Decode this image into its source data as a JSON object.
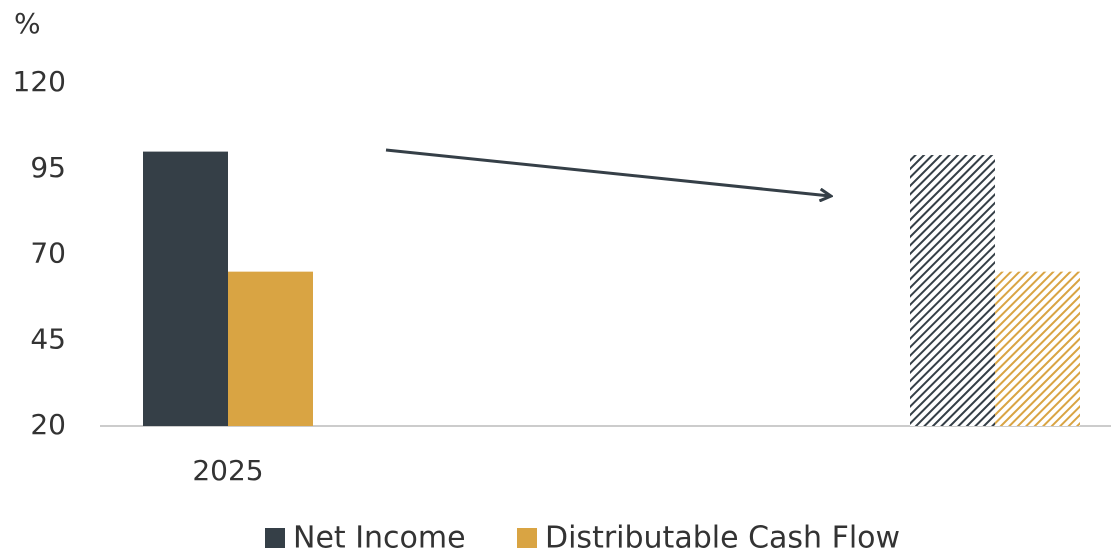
{
  "chart_data": {
    "type": "bar",
    "y_label": "%",
    "categories": [
      "2025",
      null
    ],
    "series": [
      {
        "name": "Net Income",
        "color": "#353f47",
        "values": [
          100,
          99
        ]
      },
      {
        "name": "Distributable Cash Flow",
        "color": "#d9a443",
        "values": [
          65,
          65
        ]
      }
    ],
    "hatched": [
      false,
      true
    ],
    "ylim": [
      20,
      120
    ],
    "yticks": [
      20,
      45,
      70,
      95,
      120
    ],
    "grid": false,
    "legend": "bottom"
  }
}
